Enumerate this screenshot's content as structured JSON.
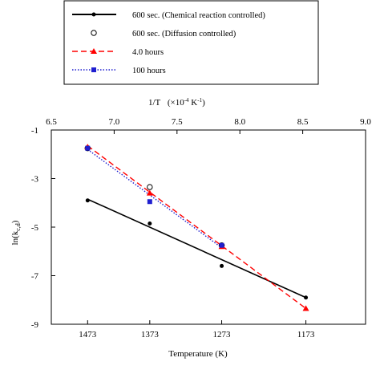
{
  "chart_data": {
    "type": "scatter",
    "title": "",
    "top_axis": {
      "label": "1/T",
      "unit_label": "(×10",
      "unit_exp": "-4",
      "unit_mid": " K",
      "unit_exp2": "-1",
      "unit_end": ")",
      "range": [
        6.5,
        9.0
      ],
      "ticks": [
        "6.5",
        "7.0",
        "7.5",
        "8.0",
        "8.5",
        "9.0"
      ]
    },
    "xlabel": "Temperature (K)",
    "x_ticks": [
      "1473",
      "1373",
      "1273",
      "1173"
    ],
    "ylabel": "ln(k",
    "ylabel_sub": "c,d",
    "ylabel_end": ")",
    "ylim": [
      -9,
      -1
    ],
    "y_ticks": [
      "-1",
      "-3",
      "-5",
      "-7",
      "-9"
    ],
    "grid": false,
    "legend_position": "top",
    "series": [
      {
        "name": "600 sec. (Chemical reaction controlled)",
        "color": "#000000",
        "marker": "filled-circle",
        "line": "solid",
        "points": [
          [
            1473,
            -3.9
          ],
          [
            1373,
            -4.85
          ],
          [
            1273,
            -6.6
          ],
          [
            1173,
            -7.9
          ]
        ],
        "fit": [
          [
            1473,
            -3.85
          ],
          [
            1173,
            -7.9
          ]
        ]
      },
      {
        "name": "600 sec. (Diffusion controlled)",
        "color": "#000000",
        "marker": "open-circle",
        "line": "none",
        "points": [
          [
            1473,
            -1.75
          ],
          [
            1373,
            -3.35
          ],
          [
            1273,
            -5.75
          ]
        ]
      },
      {
        "name": "4.0 hours",
        "color": "#ff0000",
        "marker": "triangle",
        "line": "dashed",
        "points": [
          [
            1473,
            -1.7
          ],
          [
            1373,
            -3.6
          ],
          [
            1273,
            -5.8
          ],
          [
            1173,
            -8.35
          ]
        ],
        "fit": [
          [
            1473,
            -1.65
          ],
          [
            1173,
            -8.35
          ]
        ]
      },
      {
        "name": "100 hours",
        "color": "#1f1fd0",
        "marker": "square",
        "line": "dotted",
        "points": [
          [
            1473,
            -1.75
          ],
          [
            1373,
            -3.95
          ],
          [
            1273,
            -5.75
          ]
        ],
        "fit": [
          [
            1473,
            -1.8
          ],
          [
            1273,
            -5.85
          ]
        ]
      }
    ]
  }
}
